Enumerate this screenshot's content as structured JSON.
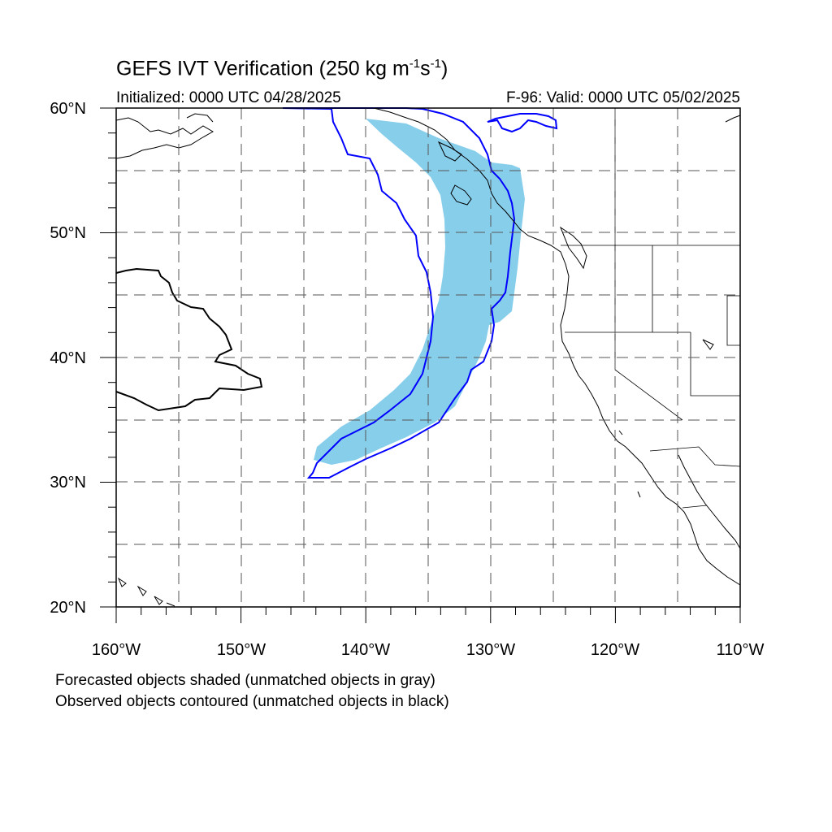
{
  "title": {
    "prefix": "GEFS IVT Verification (250 kg m",
    "sup1": "-1",
    "mid": "s",
    "sup2": "-1",
    "suffix": ")"
  },
  "subtitle": {
    "initialized": "Initialized: 0000 UTC 04/28/2025",
    "valid": "F-96: Valid: 0000 UTC 05/02/2025"
  },
  "notes": {
    "forecast": "Forecasted objects shaded (unmatched objects in gray)",
    "observed": "Observed objects contoured (unmatched objects in black)"
  },
  "map": {
    "lon_range": [
      -160,
      -110
    ],
    "lat_range": [
      20,
      60
    ],
    "grid_style": "dashed",
    "lon_labels": [
      "160°W",
      "150°W",
      "140°W",
      "130°W",
      "120°W",
      "110°W"
    ],
    "lat_labels": [
      "20°N",
      "30°N",
      "40°N",
      "50°N",
      "60°N"
    ],
    "colors": {
      "forecast_matched": "#87ceeb",
      "observed_matched": "#0000ff",
      "observed_unmatched": "#000000",
      "coastline": "#000000",
      "grid": "#555555"
    }
  }
}
